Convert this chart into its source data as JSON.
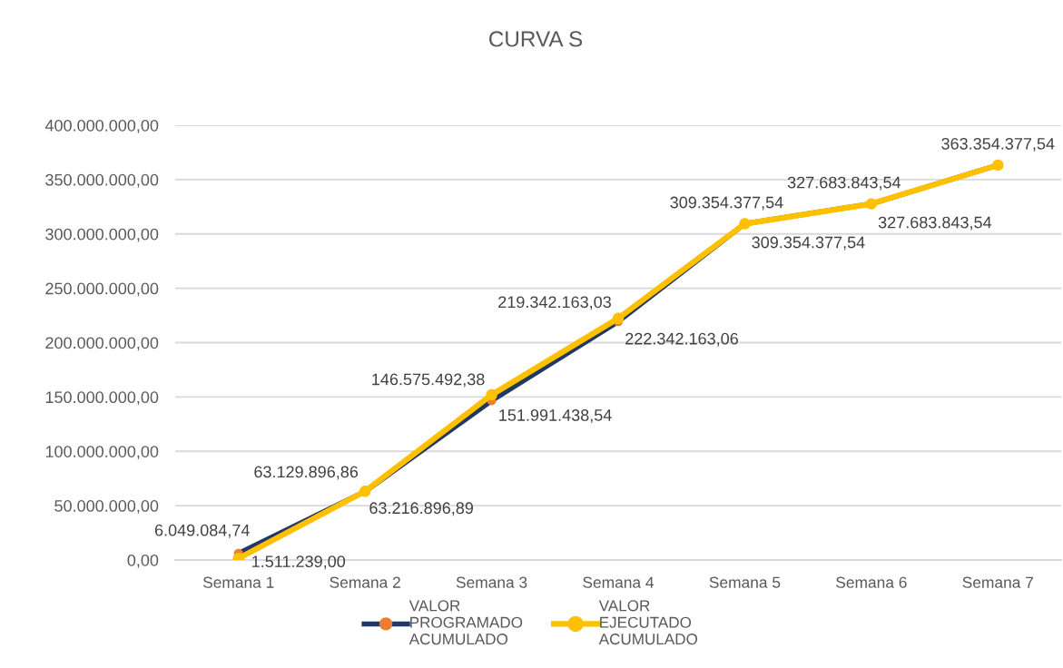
{
  "chart_data": {
    "type": "line",
    "title": "CURVA S",
    "categories": [
      "Semana 1",
      "Semana 2",
      "Semana 3",
      "Semana 4",
      "Semana 5",
      "Semana 6",
      "Semana 7"
    ],
    "series": [
      {
        "name": "VALOR PROGRAMADO ACUMULADO",
        "color": "#1f3864",
        "colors": [
          "#ed7d31",
          "#ed7d31",
          "#ed7d31",
          "#ed7d31",
          "#ed7d31",
          "#ed7d31",
          "#ed7d31"
        ],
        "values": [
          6049084.74,
          63129896.86,
          146575492.38,
          219342163.03,
          309354377.54,
          327683843.54,
          363354377.54
        ],
        "value_labels": [
          "6.049.084,74",
          "63.129.896,86",
          "146.575.492,38",
          "219.342.163,03",
          "309.354.377,54",
          "327.683.843,54",
          "363.354.377,54"
        ]
      },
      {
        "name": "VALOR EJECUTADO ACUMULADO",
        "color": "#ffc000",
        "values": [
          1511239.0,
          63216896.89,
          151991438.54,
          222342163.06,
          309354377.54,
          327683843.54,
          363354377.54
        ],
        "value_labels": [
          "1.511.239,00",
          "63.216.896,89",
          "151.991.438,54",
          "222.342.163,06",
          "309.354.377,54",
          "327.683.843,54",
          null
        ]
      }
    ],
    "ylim": [
      0,
      400000000
    ],
    "yticks": [
      {
        "value": 0,
        "label": "0,00"
      },
      {
        "value": 50000000,
        "label": "50.000.000,00"
      },
      {
        "value": 100000000,
        "label": "100.000.000,00"
      },
      {
        "value": 150000000,
        "label": "150.000.000,00"
      },
      {
        "value": 200000000,
        "label": "200.000.000,00"
      },
      {
        "value": 250000000,
        "label": "250.000.000,00"
      },
      {
        "value": 300000000,
        "label": "300.000.000,00"
      },
      {
        "value": 350000000,
        "label": "350.000.000,00"
      },
      {
        "value": 400000000,
        "label": "400.000.000,00"
      }
    ],
    "grid": "y",
    "legend": "bottom",
    "marker": "circle",
    "line_style": "solid"
  }
}
